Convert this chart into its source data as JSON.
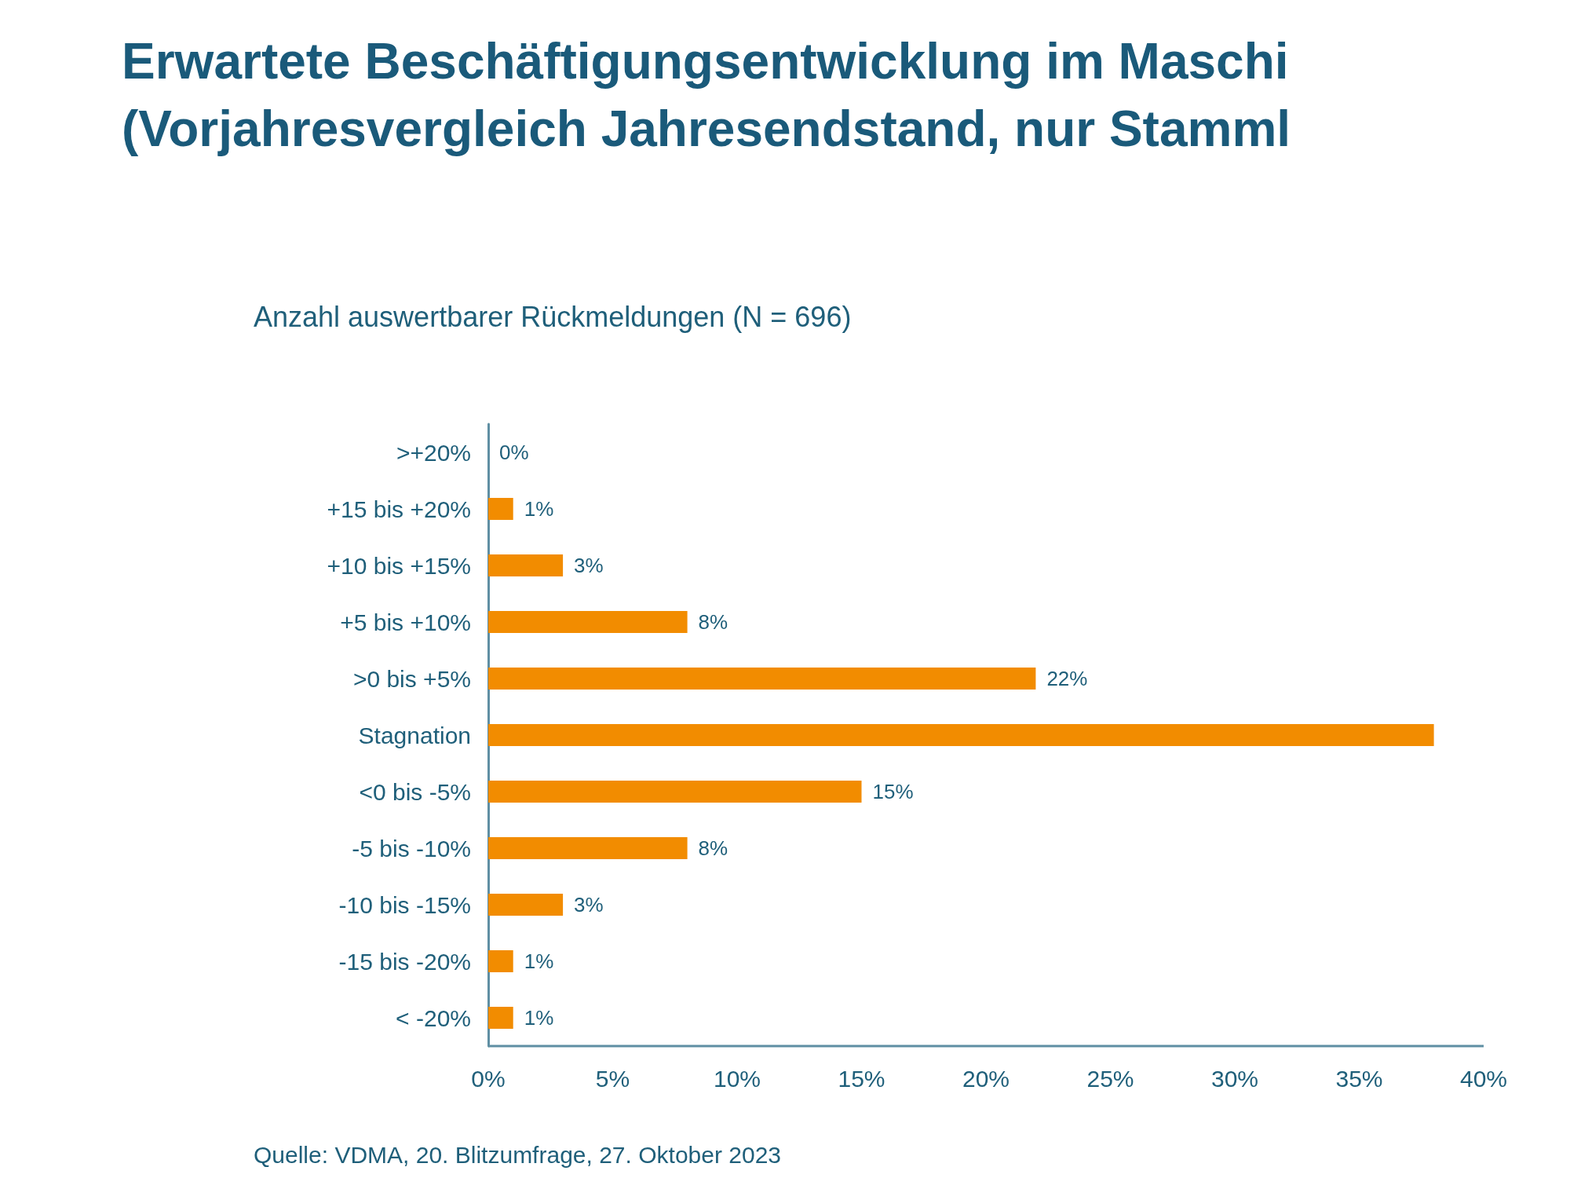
{
  "chart_data": {
    "type": "bar",
    "orientation": "horizontal",
    "title": "Erwartete Beschäftigungsentwicklung im Maschi\n(Vorjahresvergleich Jahresendstand, nur Stamml",
    "subtitle": "Anzahl auswertbarer Rückmeldungen (N = 696)",
    "categories": [
      ">+20%",
      "+15 bis +20%",
      "+10 bis +15%",
      "+5 bis +10%",
      ">0 bis +5%",
      "Stagnation",
      "<0 bis -5%",
      "-5 bis -10%",
      "-10 bis -15%",
      "-15 bis -20%",
      "< -20%"
    ],
    "values": [
      0,
      1,
      3,
      8,
      22,
      38,
      15,
      8,
      3,
      1,
      1
    ],
    "value_labels": [
      "0%",
      "1%",
      "3%",
      "8%",
      "22%",
      null,
      "15%",
      "8%",
      "3%",
      "1%",
      "1%"
    ],
    "color": "#f28c00",
    "xlim": [
      0,
      40
    ],
    "xticks": [
      {
        "value": 0,
        "label": "0%"
      },
      {
        "value": 5,
        "label": "5%"
      },
      {
        "value": 10,
        "label": "10%"
      },
      {
        "value": 15,
        "label": "15%"
      },
      {
        "value": 20,
        "label": "20%"
      },
      {
        "value": 25,
        "label": "25%"
      },
      {
        "value": 30,
        "label": "30%"
      },
      {
        "value": 35,
        "label": "35%"
      },
      {
        "value": 40,
        "label": "40%"
      }
    ],
    "grid": false,
    "annotations": [
      "Quelle: VDMA, 20. Blitzumfrage, 27. Oktober 2023"
    ]
  }
}
